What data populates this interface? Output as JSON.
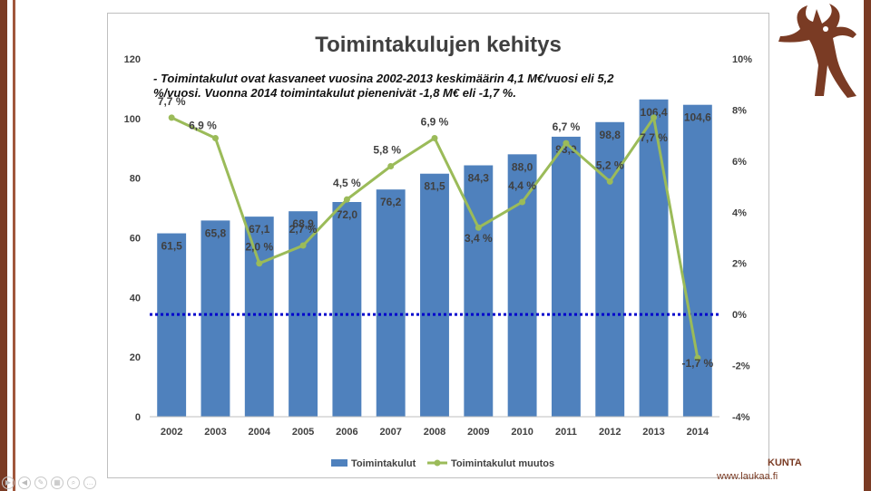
{
  "slide": {
    "corner_text": "KUNTA",
    "corner_url": "www.laukaa.fi",
    "toolbar_icons": [
      "play-icon",
      "back-icon",
      "pen-icon",
      "slides-icon",
      "zoom-icon",
      "more-icon"
    ]
  },
  "chart_data": {
    "type": "bar",
    "title": "Toimintakulujen kehitys",
    "subtitle": "- Toimintakulut ovat kasvaneet vuosina 2002-2013 keskimäärin 4,1 M€/vuosi eli 5,2 %/vuosi. Vuonna 2014 toimintakulut pienenivät -1,8 M€ eli -1,7 %.",
    "subtitle_lines": [
      "- Toimintakulut ovat kasvaneet vuosina 2002-2013 keskimäärin 4,1 M€/vuosi eli 5,2",
      "%/vuosi. Vuonna 2014 toimintakulut pienenivät -1,8 M€ eli -1,7 %."
    ],
    "categories": [
      "2002",
      "2003",
      "2004",
      "2005",
      "2006",
      "2007",
      "2008",
      "2009",
      "2010",
      "2011",
      "2012",
      "2013",
      "2014"
    ],
    "series": [
      {
        "name": "Toimintakulut",
        "type": "bar",
        "axis": "left",
        "color": "#4f81bd",
        "values": [
          61.5,
          65.8,
          67.1,
          68.9,
          72.0,
          76.2,
          81.5,
          84.3,
          88.0,
          93.9,
          98.8,
          106.4,
          104.6
        ],
        "labels": [
          "61,5",
          "65,8",
          "67,1",
          "68,9",
          "72,0",
          "76,2",
          "81,5",
          "84,3",
          "88,0",
          "93,9",
          "98,8",
          "106,4",
          "104,6"
        ]
      },
      {
        "name": "Toimintakulut muutos",
        "type": "line",
        "axis": "right",
        "color": "#9bbb59",
        "values": [
          7.7,
          6.9,
          2.0,
          2.7,
          4.5,
          5.8,
          6.9,
          3.4,
          4.4,
          6.7,
          5.2,
          7.7,
          -1.7
        ],
        "labels": [
          "7,7 %",
          "6,9 %",
          "2,0 %",
          "2,7 %",
          "4,5 %",
          "5,8 %",
          "6,9 %",
          "3,4 %",
          "4,4 %",
          "6,7 %",
          "5,2 %",
          "7,7 %",
          "-1,7 %"
        ]
      }
    ],
    "y_left": {
      "min": 0,
      "max": 120,
      "ticks": [
        "0",
        "20",
        "40",
        "60",
        "80",
        "100",
        "120"
      ]
    },
    "y_right": {
      "min": -4,
      "max": 10,
      "ticks": [
        "-4%",
        "-2%",
        "0%",
        "2%",
        "4%",
        "6%",
        "8%",
        "10%"
      ]
    },
    "reference_line": {
      "axis": "right",
      "value": 0,
      "color": "#0000cc"
    },
    "legend_position": "bottom",
    "grid": false
  }
}
